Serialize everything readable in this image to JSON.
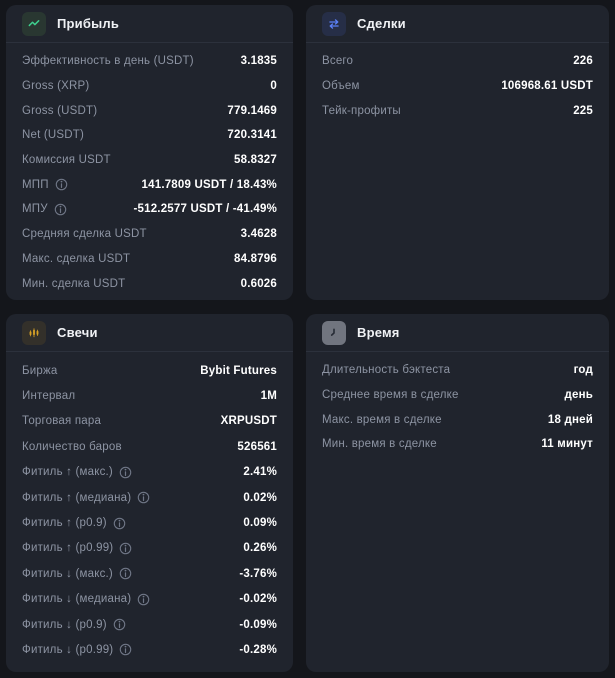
{
  "colors": {
    "page_bg": "#14161b",
    "card_bg": "#20242d",
    "divider": "#2c313c",
    "label": "#8d94a3",
    "value": "#ffffff",
    "profit_accent": "#3ecf8e",
    "trades_accent": "#5b80f7",
    "candles_accent": "#d6a127",
    "time_badge": "#71757f"
  },
  "cards": {
    "profit": {
      "title": "Прибыль",
      "icon": "trend-up-icon",
      "rows": [
        {
          "label": "Эффективность в день (USDT)",
          "value": "3.1835"
        },
        {
          "label": "Gross (XRP)",
          "value": "0"
        },
        {
          "label": "Gross (USDT)",
          "value": "779.1469"
        },
        {
          "label": "Net (USDT)",
          "value": "720.3141"
        },
        {
          "label": "Комиссия USDT",
          "value": "58.8327"
        },
        {
          "label": "МПП",
          "info": true,
          "value": "141.7809 USDT / 18.43%"
        },
        {
          "label": "МПУ",
          "info": true,
          "value": "-512.2577 USDT / -41.49%"
        },
        {
          "label": "Средняя сделка USDT",
          "value": "3.4628"
        },
        {
          "label": "Макс. сделка USDT",
          "value": "84.8796"
        },
        {
          "label": "Мин. сделка USDT",
          "value": "0.6026"
        }
      ]
    },
    "trades": {
      "title": "Сделки",
      "icon": "swap-arrows-icon",
      "rows": [
        {
          "label": "Всего",
          "value": "226"
        },
        {
          "label": "Объем",
          "value": "106968.61 USDT"
        },
        {
          "label": "Тейк-профиты",
          "value": "225"
        }
      ]
    },
    "candles": {
      "title": "Свечи",
      "icon": "candlestick-icon",
      "rows": [
        {
          "label": "Биржа",
          "value": "Bybit Futures"
        },
        {
          "label": "Интервал",
          "value": "1M"
        },
        {
          "label": "Торговая пара",
          "value": "XRPUSDT"
        },
        {
          "label": "Количество баров",
          "value": "526561"
        },
        {
          "label": "Фитиль ↑ (макс.)",
          "info": true,
          "value": "2.41%"
        },
        {
          "label": "Фитиль ↑ (медиана)",
          "info": true,
          "value": "0.02%"
        },
        {
          "label": "Фитиль ↑ (p0.9)",
          "info": true,
          "value": "0.09%"
        },
        {
          "label": "Фитиль ↑ (p0.99)",
          "info": true,
          "value": "0.26%"
        },
        {
          "label": "Фитиль ↓ (макс.)",
          "info": true,
          "value": "-3.76%"
        },
        {
          "label": "Фитиль ↓ (медиана)",
          "info": true,
          "value": "-0.02%"
        },
        {
          "label": "Фитиль ↓ (p0.9)",
          "info": true,
          "value": "-0.09%"
        },
        {
          "label": "Фитиль ↓ (p0.99)",
          "info": true,
          "value": "-0.28%"
        }
      ]
    },
    "time": {
      "title": "Время",
      "icon": "clock-icon",
      "rows": [
        {
          "label": "Длительность бэктеста",
          "value": "год"
        },
        {
          "label": "Среднее время в сделке",
          "value": "день"
        },
        {
          "label": "Макс. время в сделке",
          "value": "18 дней"
        },
        {
          "label": "Мин. время в сделке",
          "value": "11 минут"
        }
      ]
    }
  }
}
